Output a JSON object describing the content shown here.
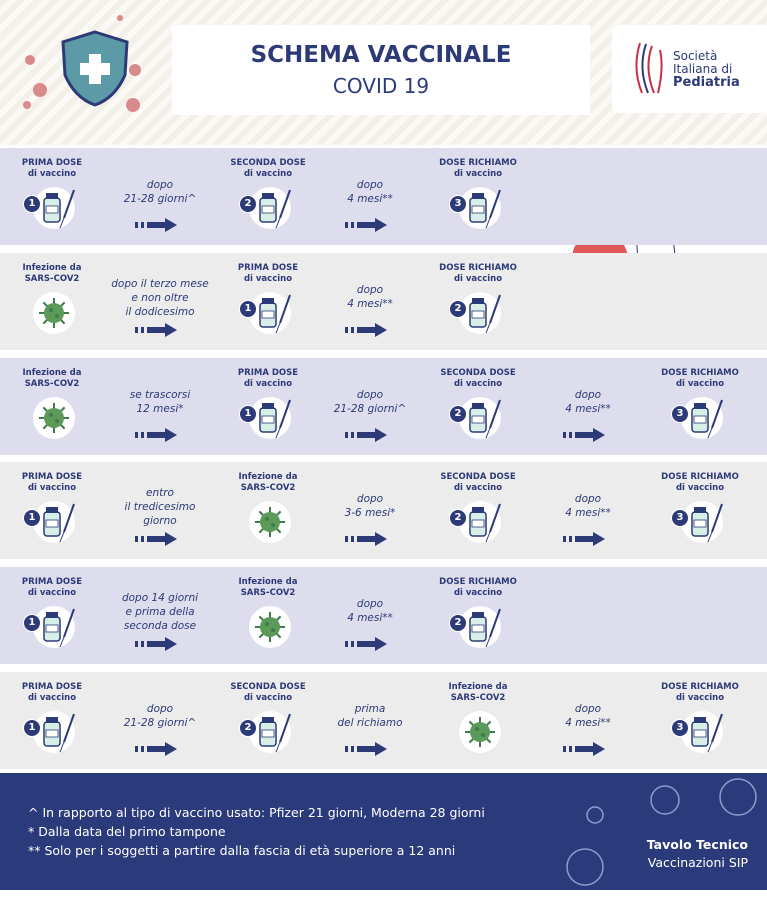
{
  "header": {
    "title": "SCHEMA VACCINALE",
    "subtitle": "COVID 19",
    "logo": [
      "Società",
      "Italiana di",
      "Pediatria"
    ]
  },
  "rows": [
    {
      "cells": [
        {
          "label": [
            "PRIMA DOSE",
            "di vaccino"
          ],
          "number": "1"
        },
        {
          "text": [
            "dopo",
            "21-28 giorni^"
          ]
        },
        {
          "label": [
            "SECONDA DOSE",
            "di vaccino"
          ],
          "number": "2"
        },
        {
          "text": [
            "dopo",
            "4 mesi**"
          ]
        },
        {
          "label": [
            "DOSE RICHIAMO",
            "di vaccino"
          ],
          "number": "3"
        }
      ]
    },
    {
      "cells": [
        {
          "label": [
            "Infezione da",
            "SARS-COV2"
          ]
        },
        {
          "text": [
            "dopo il terzo mese",
            "e non oltre",
            "il dodicesimo"
          ]
        },
        {
          "label": [
            "PRIMA DOSE",
            "di vaccino"
          ],
          "number": "1"
        },
        {
          "text": [
            "dopo",
            "4 mesi**"
          ]
        },
        {
          "label": [
            "DOSE RICHIAMO",
            "di vaccino"
          ],
          "number": "2"
        }
      ]
    },
    {
      "cells": [
        {
          "label": [
            "Infezione da",
            "SARS-COV2"
          ]
        },
        {
          "text": [
            "se trascorsi",
            "12 mesi*"
          ]
        },
        {
          "label": [
            "PRIMA DOSE",
            "di vaccino"
          ],
          "number": "1"
        },
        {
          "text": [
            "dopo",
            "21-28 giorni^"
          ]
        },
        {
          "label": [
            "SECONDA DOSE",
            "di vaccino"
          ],
          "number": "2"
        },
        {
          "text": [
            "dopo",
            "4 mesi**"
          ]
        },
        {
          "label": [
            "DOSE RICHIAMO",
            "di vaccino"
          ],
          "number": "3"
        }
      ]
    },
    {
      "cells": [
        {
          "label": [
            "PRIMA DOSE",
            "di vaccino"
          ],
          "number": "1"
        },
        {
          "text": [
            "entro",
            "il tredicesimo",
            "giorno"
          ]
        },
        {
          "label": [
            "Infezione da",
            "SARS-COV2"
          ]
        },
        {
          "text": [
            "dopo",
            "3-6 mesi*"
          ]
        },
        {
          "label": [
            "SECONDA DOSE",
            "di vaccino"
          ],
          "number": "2"
        },
        {
          "text": [
            "dopo",
            "4 mesi**"
          ]
        },
        {
          "label": [
            "DOSE RICHIAMO",
            "di vaccino"
          ],
          "number": "3"
        }
      ]
    },
    {
      "cells": [
        {
          "label": [
            "PRIMA DOSE",
            "di vaccino"
          ],
          "number": "1"
        },
        {
          "text": [
            "dopo 14 giorni",
            "e prima della",
            "seconda dose"
          ]
        },
        {
          "label": [
            "Infezione da",
            "SARS-COV2"
          ]
        },
        {
          "text": [
            "dopo",
            "4 mesi**"
          ]
        },
        {
          "label": [
            "DOSE RICHIAMO",
            "di vaccino"
          ],
          "number": "2"
        }
      ]
    },
    {
      "cells": [
        {
          "label": [
            "PRIMA DOSE",
            "di vaccino"
          ],
          "number": "1"
        },
        {
          "text": [
            "dopo",
            "21-28 giorni^"
          ]
        },
        {
          "label": [
            "SECONDA DOSE",
            "di vaccino"
          ],
          "number": "2"
        },
        {
          "text": [
            "prima",
            "del richiamo"
          ]
        },
        {
          "label": [
            "Infezione da",
            "SARS-COV2"
          ]
        },
        {
          "text": [
            "dopo",
            "4 mesi**"
          ]
        },
        {
          "label": [
            "DOSE RICHIAMO",
            "di vaccino"
          ],
          "number": "3"
        }
      ]
    }
  ],
  "footer": {
    "notes": [
      "^ In rapporto al tipo di vaccino usato: Pfizer 21 giorni, Moderna 28 giorni",
      "* Dalla data del primo tampone",
      "** Solo per i soggetti a partire dalla fascia di età superiore a 12 anni"
    ],
    "credit": [
      "Tavolo Tecnico",
      "Vaccinazioni SIP"
    ]
  }
}
